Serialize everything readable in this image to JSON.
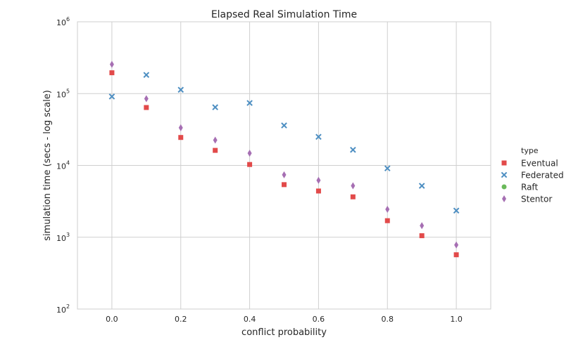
{
  "chart_data": {
    "type": "scatter",
    "title": "Elapsed Real Simulation Time",
    "xlabel": "conflict probability",
    "ylabel": "simulation time (secs - log scale)",
    "xlim": [
      -0.1,
      1.1
    ],
    "ylim": [
      100,
      1000000
    ],
    "y_scale": "log",
    "x_ticks": [
      "0.0",
      "0.2",
      "0.4",
      "0.6",
      "0.8",
      "1.0"
    ],
    "x_tick_values": [
      0.0,
      0.2,
      0.4,
      0.6,
      0.8,
      1.0
    ],
    "y_tick_values": [
      100,
      1000,
      10000,
      100000,
      1000000
    ],
    "y_tick_exponents": [
      "2",
      "3",
      "4",
      "5",
      "6"
    ],
    "y_tick_base": "10",
    "grid": true,
    "legend_title": "type",
    "legend_position": "right",
    "series": [
      {
        "name": "Eventual",
        "marker": "square",
        "color": "#e24a4a",
        "x": [
          0.0,
          0.1,
          0.2,
          0.3,
          0.4,
          0.5,
          0.6,
          0.7,
          0.8,
          0.9,
          1.0
        ],
        "values": [
          195000,
          64000,
          24500,
          16200,
          10300,
          5400,
          4400,
          3650,
          1700,
          1050,
          570
        ]
      },
      {
        "name": "Federated",
        "marker": "x",
        "color": "#4e8fc2",
        "x": [
          0.0,
          0.1,
          0.2,
          0.3,
          0.4,
          0.5,
          0.6,
          0.7,
          0.8,
          0.9,
          1.0
        ],
        "values": [
          91000,
          182000,
          113000,
          64500,
          74000,
          36000,
          25000,
          16500,
          9100,
          5200,
          2350
        ]
      },
      {
        "name": "Raft",
        "marker": "circle",
        "color": "#6ab95a",
        "x": [],
        "values": []
      },
      {
        "name": "Stentor",
        "marker": "diamond",
        "color": "#a66fb3",
        "x": [
          0.0,
          0.1,
          0.2,
          0.3,
          0.4,
          0.5,
          0.6,
          0.7,
          0.8,
          0.9,
          1.0
        ],
        "values": [
          255000,
          85000,
          33500,
          22500,
          14800,
          7400,
          6200,
          5200,
          2450,
          1450,
          780
        ]
      }
    ]
  }
}
